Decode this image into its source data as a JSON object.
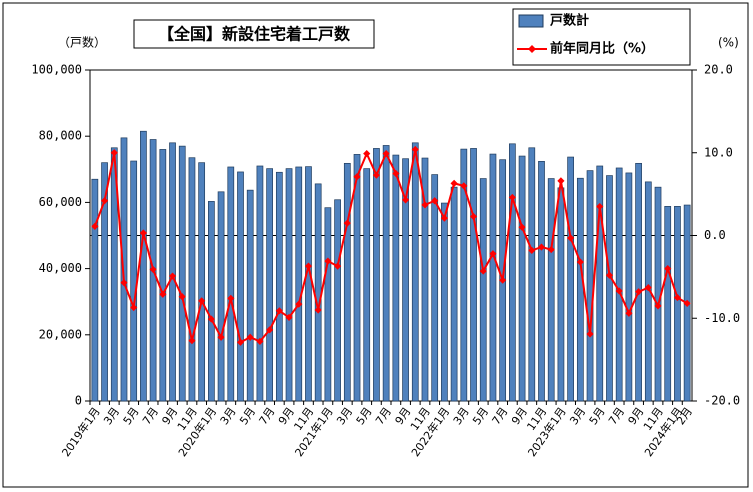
{
  "chart_data": {
    "type": "bar_line",
    "title": "【全国】新設住宅着工戸数",
    "y_unit": "（戸数）",
    "y2_unit": "(%)",
    "categories": [
      "2019年1月",
      null,
      "3月",
      null,
      "5月",
      null,
      "7月",
      null,
      "9月",
      null,
      "11月",
      null,
      "2020年1月",
      null,
      "3月",
      null,
      "5月",
      null,
      "7月",
      null,
      "9月",
      null,
      "11月",
      null,
      "2021年1月",
      null,
      "3月",
      null,
      "5月",
      null,
      "7月",
      null,
      "9月",
      null,
      "11月",
      null,
      "2022年1月",
      null,
      "3月",
      null,
      "5月",
      null,
      "7月",
      null,
      "9月",
      null,
      "11月",
      null,
      "2023年1月",
      null,
      "3月",
      null,
      "5月",
      null,
      "7月",
      null,
      "9月",
      null,
      "11月",
      null,
      "2024年1月",
      "2月"
    ],
    "series": [
      {
        "name": "戸数計",
        "type": "bar",
        "color": "#4f81bd",
        "axis": "y",
        "values": [
          67000,
          72000,
          76500,
          79500,
          72500,
          81500,
          79000,
          76000,
          78000,
          77000,
          73500,
          72000,
          60300,
          63200,
          70700,
          69200,
          63700,
          71000,
          70200,
          69100,
          70200,
          70700,
          70800,
          65600,
          58400,
          60800,
          71800,
          74500,
          70200,
          76300,
          77200,
          74300,
          73200,
          78000,
          73400,
          68400,
          59800,
          64600,
          76100,
          76300,
          67200,
          74600,
          72900,
          77700,
          74000,
          76500,
          72400,
          67200,
          64400,
          73700,
          67300,
          69600,
          71000,
          68100,
          70400,
          68900,
          71800,
          66200,
          64600,
          58800,
          58800,
          59200
        ]
      },
      {
        "name": "前年同月比（%）",
        "type": "line",
        "color": "#ff0000",
        "axis": "y2",
        "values": [
          1.1,
          4.2,
          10.0,
          -5.7,
          -8.7,
          0.3,
          -4.1,
          -7.1,
          -4.9,
          -7.4,
          -12.7,
          -7.9,
          -10.1,
          -12.3,
          -7.6,
          -12.9,
          -12.3,
          -12.8,
          -11.4,
          -9.1,
          -9.9,
          -8.3,
          -3.7,
          -9.0,
          -3.1,
          -3.7,
          1.5,
          7.1,
          9.9,
          7.3,
          9.9,
          7.5,
          4.3,
          10.4,
          3.7,
          4.2,
          2.1,
          6.3,
          6.0,
          2.3,
          -4.3,
          -2.2,
          -5.4,
          4.6,
          1.0,
          -1.8,
          -1.4,
          -1.7,
          6.6,
          -0.3,
          -3.2,
          -11.9,
          3.5,
          -4.8,
          -6.7,
          -9.4,
          -6.8,
          -6.3,
          -8.5,
          -4.0,
          -7.5,
          -8.2
        ]
      }
    ],
    "ylim": [
      0,
      100000
    ],
    "yticks": [
      0,
      {
        "value": 20000,
        "label": "20,000"
      },
      {
        "value": 40000,
        "label": "40,000"
      },
      {
        "value": 60000,
        "label": "60,000"
      },
      {
        "value": 80000,
        "label": "80,000"
      },
      {
        "value": 100000,
        "label": "100,000"
      }
    ],
    "y2lim": [
      -20,
      20
    ],
    "y2ticks": [
      {
        "value": -20,
        "label": "-20.0"
      },
      {
        "value": -10,
        "label": "-10.0"
      },
      {
        "value": 0,
        "label": "0.0"
      },
      {
        "value": 10,
        "label": "10.0"
      },
      {
        "value": 20,
        "label": "20.0"
      }
    ]
  }
}
